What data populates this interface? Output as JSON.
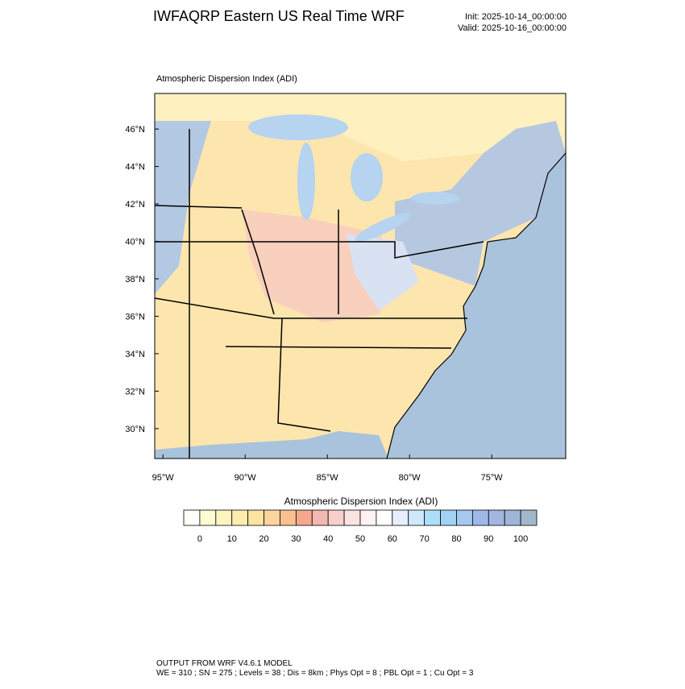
{
  "header": {
    "title": "IWFAQRP Eastern US Real Time WRF",
    "init": "Init: 2025-10-14_00:00:00",
    "valid": "Valid: 2025-10-16_00:00:00"
  },
  "map": {
    "subtitle": "Atmospheric Dispersion Index   (ADI)",
    "lon_range": [
      -95.5,
      -70.5
    ],
    "lat_range": [
      28.4,
      47.9
    ],
    "lat_ticks": [
      {
        "value": 30,
        "label": "30°N"
      },
      {
        "value": 32,
        "label": "32°N"
      },
      {
        "value": 34,
        "label": "34°N"
      },
      {
        "value": 36,
        "label": "36°N"
      },
      {
        "value": 38,
        "label": "38°N"
      },
      {
        "value": 40,
        "label": "40°N"
      },
      {
        "value": 42,
        "label": "42°N"
      },
      {
        "value": 44,
        "label": "44°N"
      },
      {
        "value": 46,
        "label": "46°N"
      }
    ],
    "lon_ticks": [
      {
        "value": -95,
        "label": "95°W"
      },
      {
        "value": -90,
        "label": "90°W"
      },
      {
        "value": -85,
        "label": "85°W"
      },
      {
        "value": -80,
        "label": "80°W"
      },
      {
        "value": -75,
        "label": "75°W"
      }
    ]
  },
  "colorbar": {
    "title": "Atmospheric Dispersion Index  (ADI)",
    "labels": [
      0,
      10,
      20,
      30,
      40,
      50,
      60,
      70,
      80,
      90,
      100
    ],
    "colors": [
      "#fffffa",
      "#fffbd2",
      "#fff4c0",
      "#ffedb0",
      "#ffe3a0",
      "#fdd49a",
      "#fbc08e",
      "#f5a88c",
      "#f4b8b2",
      "#f8cfcc",
      "#fbe3e3",
      "#fff2f2",
      "#ffffff",
      "#e6efff",
      "#cfe8fb",
      "#ade0f8",
      "#9fd2f5",
      "#a6c9f0",
      "#9fb8ec",
      "#a3b5e0",
      "#a0b6d6",
      "#a3b7cc"
    ]
  },
  "footer": {
    "line1": "OUTPUT FROM WRF V4.6.1 MODEL",
    "line2": "WE = 310 ; SN = 275 ; Levels = 38 ; Dis = 8km ; Phys Opt = 8 ; PBL Opt = 1 ; Cu Opt = 3"
  }
}
